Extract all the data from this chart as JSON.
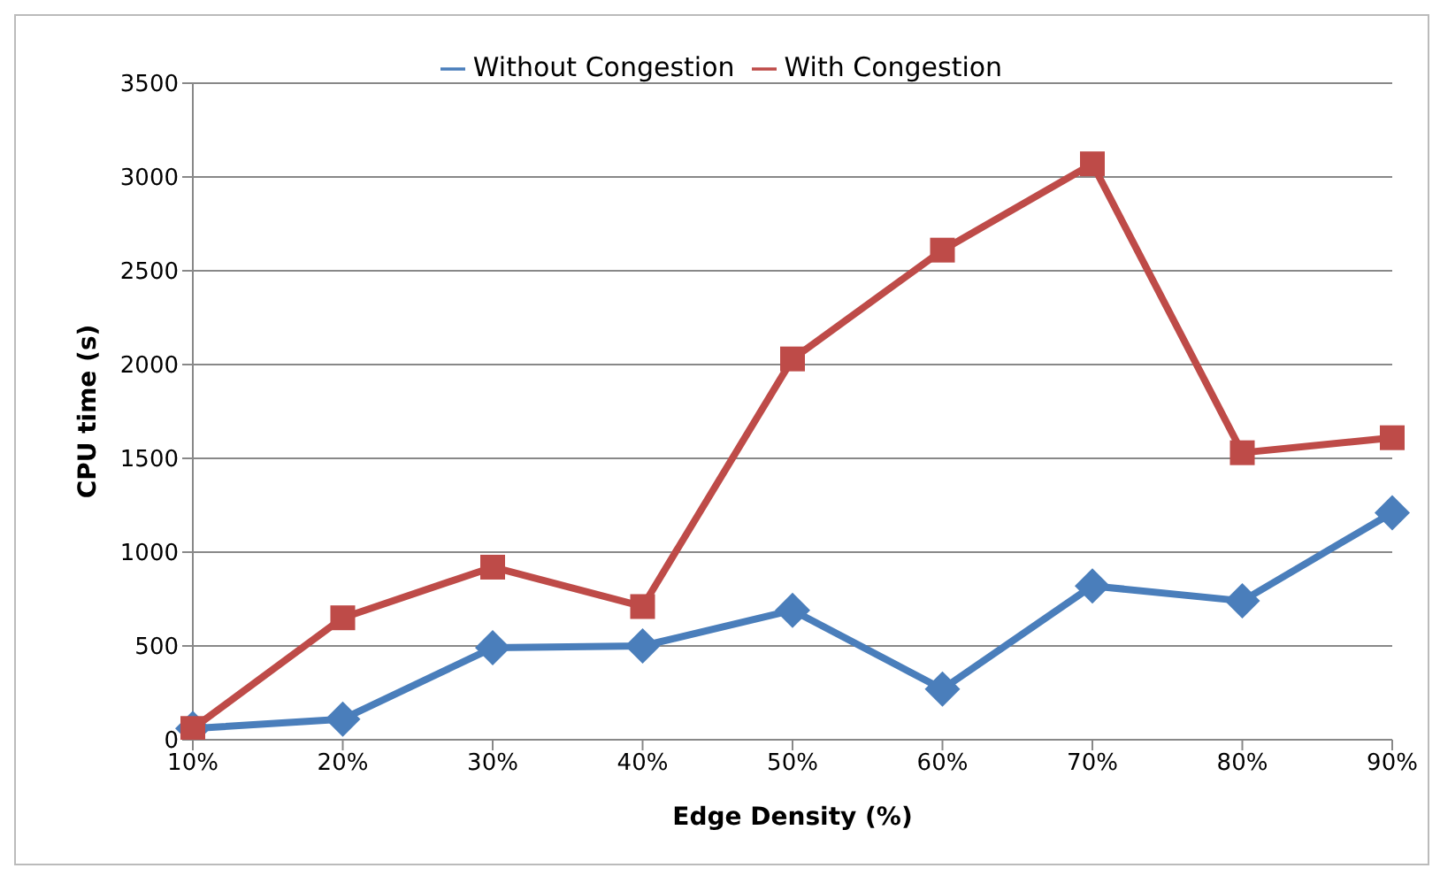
{
  "chart_data": {
    "type": "line",
    "xlabel": "Edge Density (%)",
    "ylabel": "CPU time (s)",
    "categories": [
      "10%",
      "20%",
      "30%",
      "40%",
      "50%",
      "60%",
      "70%",
      "80%",
      "90%"
    ],
    "series": [
      {
        "name": "Without Congestion",
        "color": "#4a7ebb",
        "marker": "diamond",
        "values": [
          60,
          110,
          490,
          500,
          690,
          270,
          820,
          740,
          1210
        ]
      },
      {
        "name": "With Congestion",
        "color": "#be4b48",
        "marker": "square",
        "values": [
          60,
          650,
          920,
          710,
          2030,
          2610,
          3070,
          1530,
          1610
        ]
      }
    ],
    "ylim": [
      0,
      3500
    ],
    "yticks": [
      0,
      500,
      1000,
      1500,
      2000,
      2500,
      3000,
      3500
    ],
    "grid": "y",
    "legend": "top"
  }
}
